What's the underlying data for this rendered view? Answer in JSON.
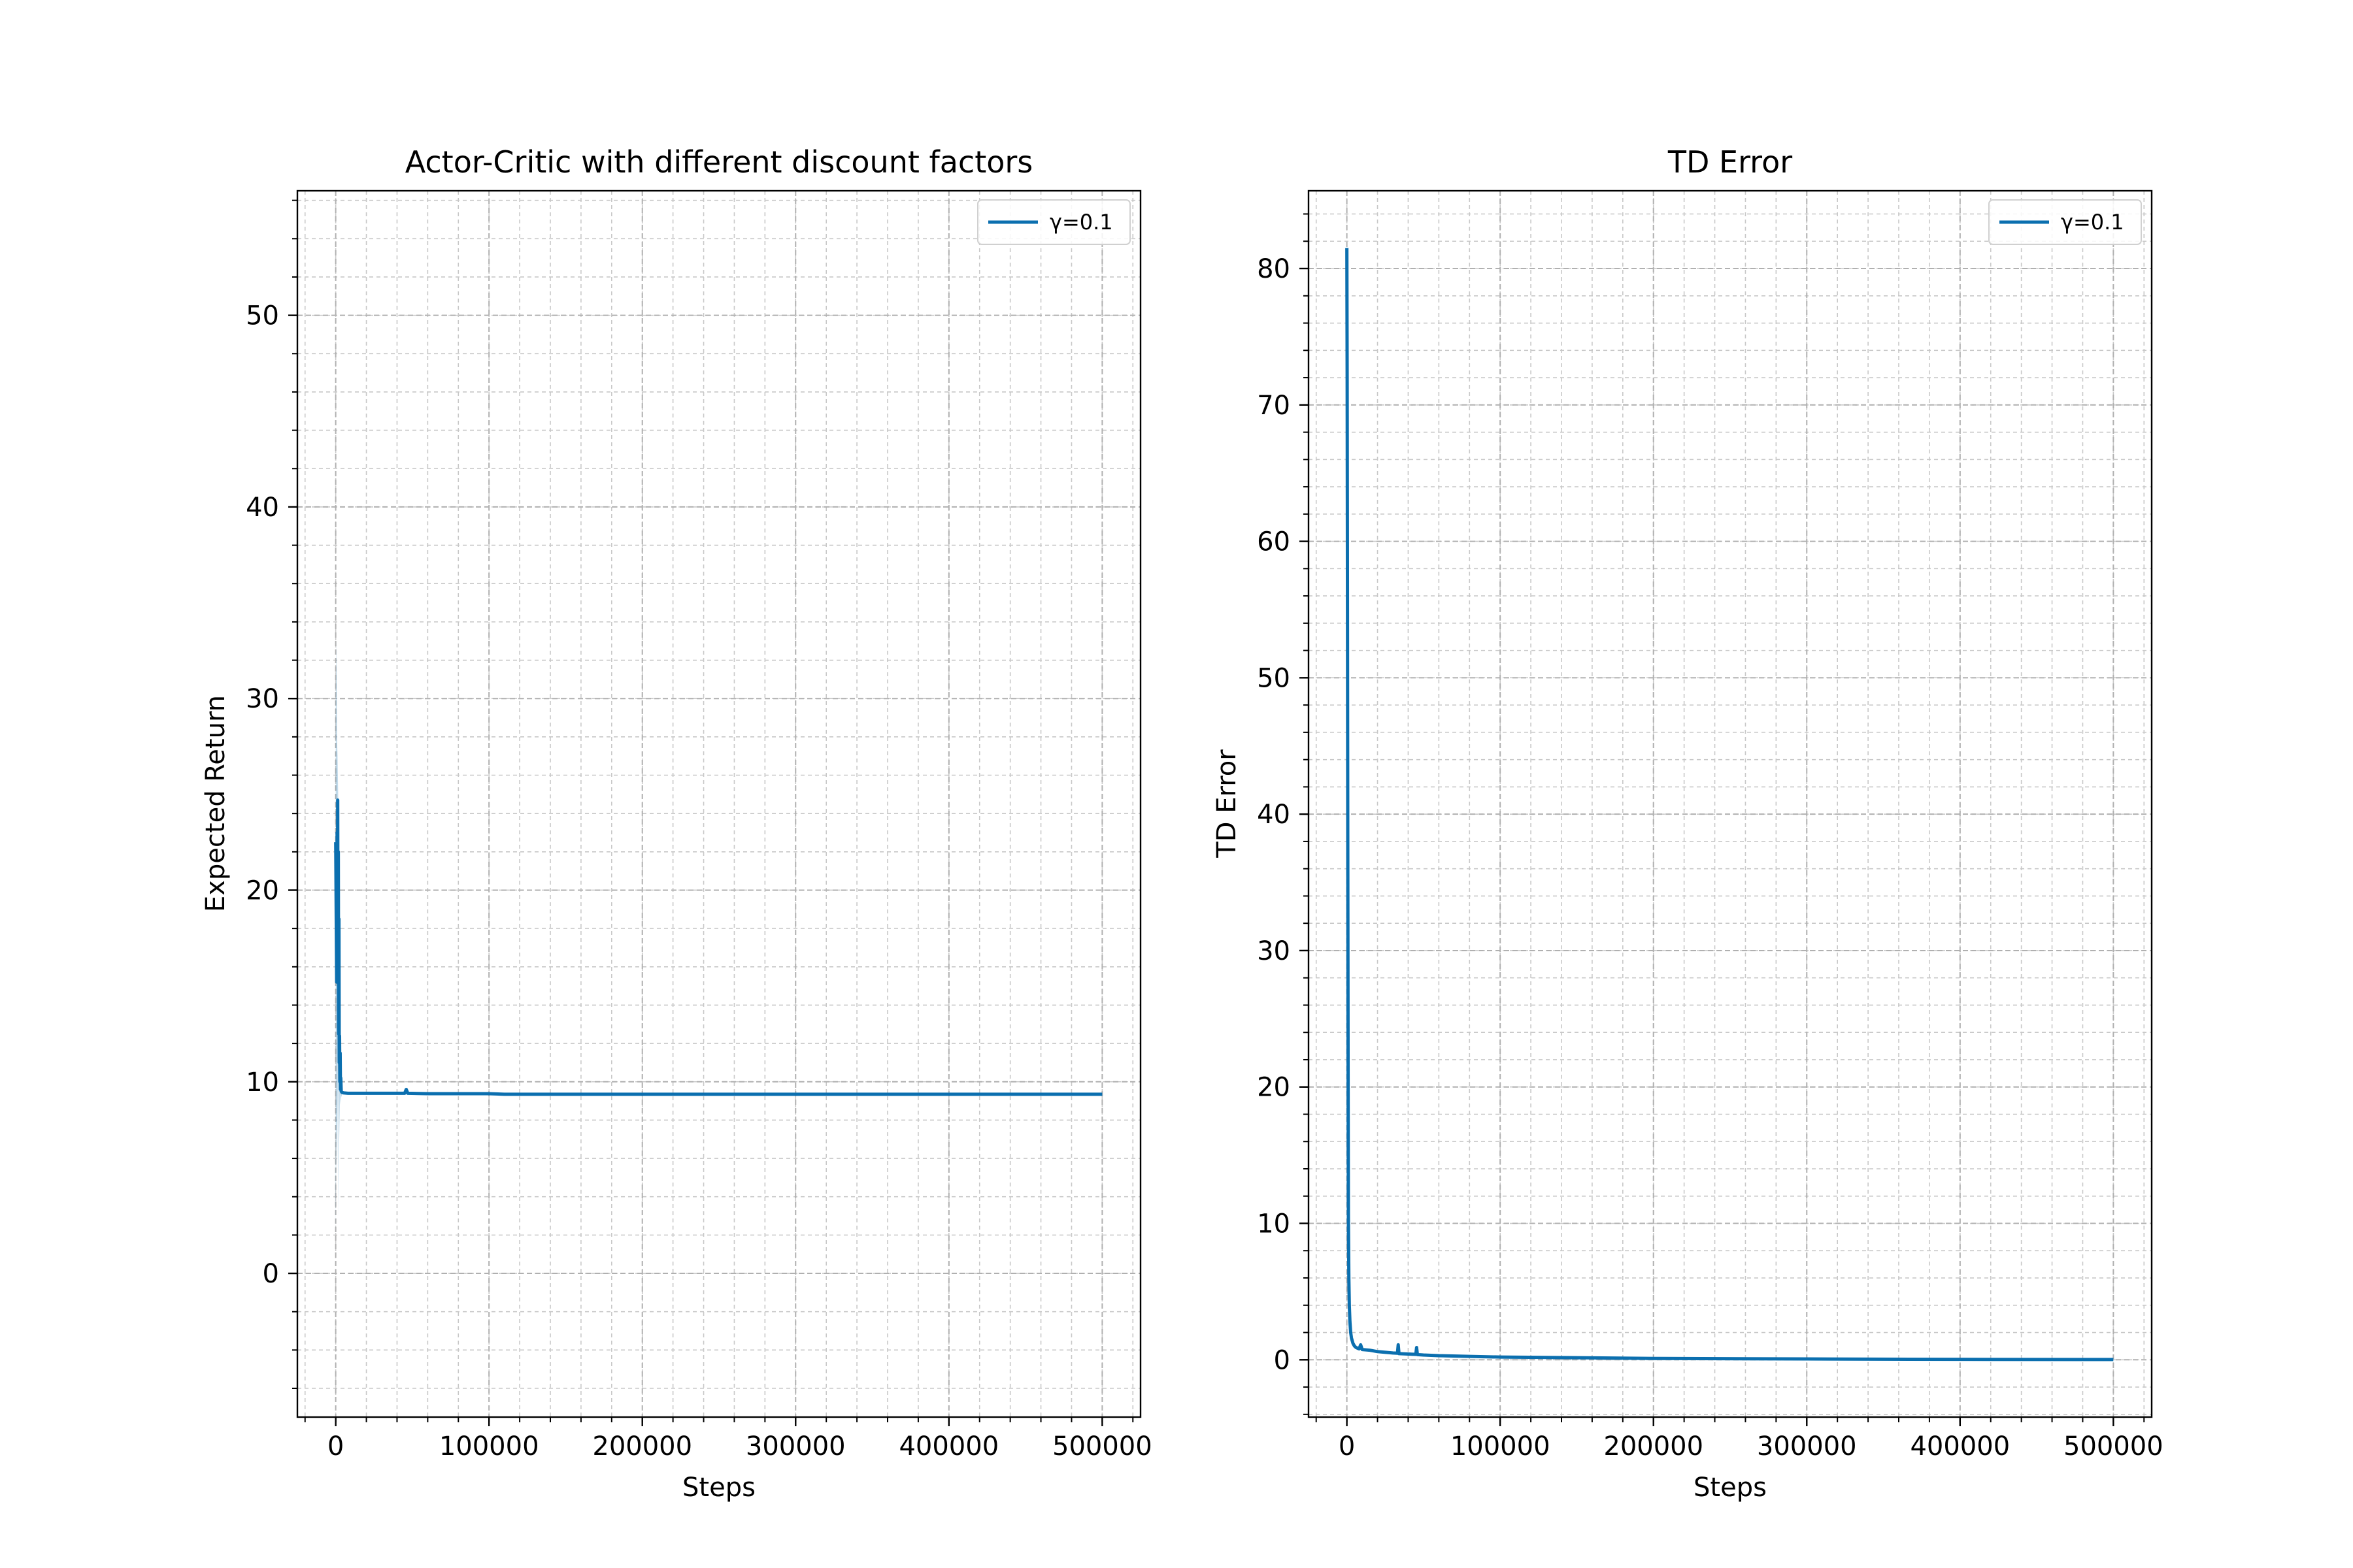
{
  "chart_data": [
    {
      "type": "line",
      "title": "Actor-Critic with different discount factors",
      "xlabel": "Steps",
      "ylabel": "Expected Return",
      "xlim": [
        -25000,
        525000
      ],
      "ylim": [
        -7.5,
        56.5
      ],
      "xticks": [
        0,
        100000,
        200000,
        300000,
        400000,
        500000
      ],
      "xticklabels": [
        "0",
        "100000",
        "200000",
        "300000",
        "400000",
        "500000"
      ],
      "yticks": [
        0,
        10,
        20,
        30,
        40,
        50
      ],
      "yticklabels": [
        "0",
        "10",
        "20",
        "30",
        "40",
        "50"
      ],
      "x_minor_step": 20000,
      "y_minor_step": 2,
      "grid": true,
      "legend_position": "top-right",
      "series": [
        {
          "name": "γ=0.1",
          "color": "#0b6faf",
          "band": {
            "x": [
              0,
              400,
              800,
              1200,
              1600,
              2000,
              2400,
              2800,
              3200,
              3600,
              4000
            ],
            "y_low": [
              2,
              8,
              5,
              10,
              3,
              12,
              7,
              9.5,
              8.8,
              9.2,
              9.3
            ],
            "y_high": [
              30,
              33,
              28,
              27,
              25,
              22,
              18,
              14,
              11,
              10,
              9.6
            ]
          },
          "x": [
            0,
            300,
            600,
            900,
            1100,
            1300,
            1500,
            1700,
            1900,
            2100,
            2300,
            2500,
            2700,
            2900,
            3100,
            3300,
            3600,
            4000,
            5000,
            8000,
            15000,
            30000,
            45000,
            46000,
            47000,
            60000,
            100000,
            110000,
            150000,
            200000,
            300000,
            400000,
            500000
          ],
          "y": [
            22.5,
            19.0,
            15.2,
            23.0,
            17.0,
            24.7,
            16.0,
            22.0,
            12.5,
            18.5,
            11.0,
            12.4,
            10.0,
            11.5,
            9.6,
            10.2,
            9.5,
            9.45,
            9.42,
            9.4,
            9.4,
            9.4,
            9.4,
            9.6,
            9.4,
            9.38,
            9.38,
            9.35,
            9.35,
            9.35,
            9.35,
            9.35,
            9.35
          ]
        }
      ]
    },
    {
      "type": "line",
      "title": "TD Error",
      "xlabel": "Steps",
      "ylabel": "TD Error",
      "xlim": [
        -25000,
        525000
      ],
      "ylim": [
        -4.2,
        85.7
      ],
      "xticks": [
        0,
        100000,
        200000,
        300000,
        400000,
        500000
      ],
      "xticklabels": [
        "0",
        "100000",
        "200000",
        "300000",
        "400000",
        "500000"
      ],
      "yticks": [
        0,
        10,
        20,
        30,
        40,
        50,
        60,
        70,
        80
      ],
      "yticklabels": [
        "0",
        "10",
        "20",
        "30",
        "40",
        "50",
        "60",
        "70",
        "80"
      ],
      "x_minor_step": 20000,
      "y_minor_step": 2,
      "grid": true,
      "legend_position": "top-right",
      "series": [
        {
          "name": "γ=0.1",
          "color": "#0b6faf",
          "x": [
            0,
            200,
            400,
            600,
            800,
            1000,
            1300,
            1600,
            2000,
            2500,
            3000,
            4000,
            5000,
            6000,
            7000,
            8000,
            9000,
            10000,
            15000,
            20000,
            30000,
            33000,
            33500,
            34000,
            40000,
            45000,
            45500,
            46000,
            50000,
            60000,
            80000,
            100000,
            150000,
            200000,
            300000,
            400000,
            500000
          ],
          "y": [
            81.5,
            72.0,
            55.0,
            38.0,
            22.0,
            10.5,
            6.0,
            4.0,
            2.8,
            2.0,
            1.6,
            1.2,
            1.0,
            0.9,
            0.85,
            0.8,
            1.1,
            0.75,
            0.7,
            0.6,
            0.5,
            0.48,
            1.1,
            0.45,
            0.42,
            0.4,
            0.9,
            0.38,
            0.35,
            0.3,
            0.25,
            0.2,
            0.15,
            0.1,
            0.06,
            0.03,
            0.02
          ]
        }
      ]
    }
  ]
}
